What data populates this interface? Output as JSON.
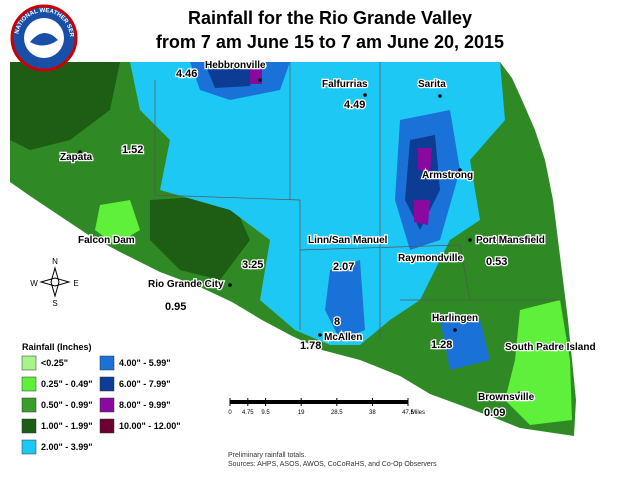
{
  "title": [
    "Rainfall for the Rio Grande Valley",
    "from 7 am June 15 to 7 am June 20, 2015"
  ],
  "logo_text": "NATIONAL WEATHER SERVICE",
  "places": [
    "Hebbronville",
    "Falfurrias",
    "Sarita",
    "Zapata",
    "Armstrong",
    "Falcon Dam",
    "Linn/San Manuel",
    "Port Mansfield",
    "Raymondville",
    "Rio Grande City",
    "Harlingen",
    "McAllen",
    "South Padre Island",
    "Brownsville"
  ],
  "amounts": [
    4.46,
    4.49,
    1.52,
    3.25,
    2.07,
    0.53,
    0.95,
    8,
    1.28,
    1.78,
    0.09
  ],
  "compass": [
    "N",
    "S",
    "W",
    "E"
  ],
  "legend": {
    "title": "Rainfall (Inches)",
    "items": [
      {
        "label": "<0.25\"",
        "color": "#a6f58c"
      },
      {
        "label": "0.25\" - 0.49\"",
        "color": "#5ef03a"
      },
      {
        "label": "0.50\" - 0.99\"",
        "color": "#3a9e2a"
      },
      {
        "label": "1.00\" - 1.99\"",
        "color": "#1d5e14"
      },
      {
        "label": "2.00\" - 3.99\"",
        "color": "#1ec8f5"
      },
      {
        "label": "4.00\" - 5.99\"",
        "color": "#1a72d8"
      },
      {
        "label": "6.00\" - 7.99\"",
        "color": "#0c3c94"
      },
      {
        "label": "8.00\" - 9.99\"",
        "color": "#8a0aa0"
      },
      {
        "label": "10.00\" - 12.00\"",
        "color": "#6a0030"
      }
    ]
  },
  "scale": {
    "ticks": [
      0,
      4.75,
      9.5,
      19,
      28.5,
      38,
      47.5
    ],
    "unit": "Miles"
  },
  "footnote": [
    "Preliminary rainfall totals.",
    "Sources: AHPS, ASOS, AWOS, CoCoRaHS, and Co-Op Observers"
  ]
}
